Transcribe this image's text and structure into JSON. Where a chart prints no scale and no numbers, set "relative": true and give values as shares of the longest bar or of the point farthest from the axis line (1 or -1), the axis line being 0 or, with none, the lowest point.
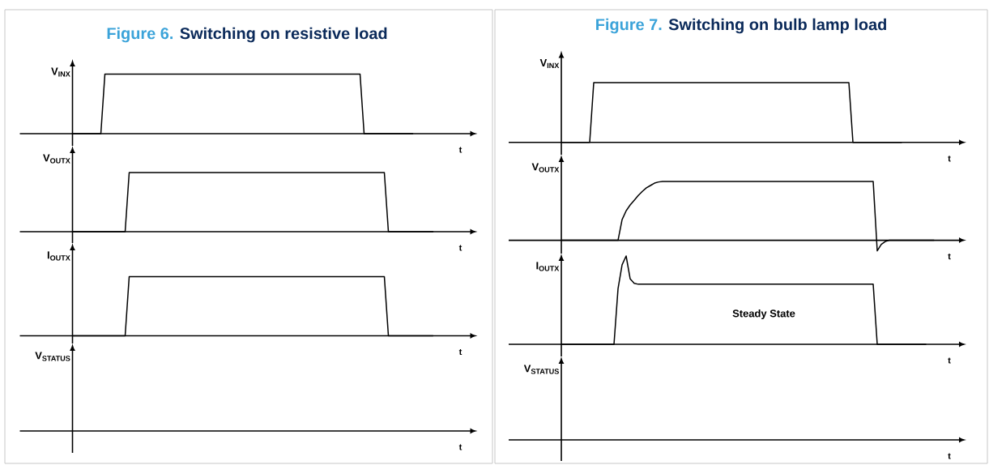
{
  "chart_data": [
    {
      "type": "line",
      "relative": true,
      "title": "Switching on resistive load",
      "annotations": [
        "Figure 6."
      ],
      "ylabel": "V$_{INX}$",
      "xlabel": "t",
      "color": "#000000",
      "categories": [
        null,
        null,
        null,
        null,
        null,
        null,
        null,
        null,
        null,
        null,
        null,
        null,
        null,
        null,
        null,
        null,
        null,
        null,
        null,
        null,
        null,
        null,
        null,
        null,
        null,
        null,
        null,
        null,
        null,
        null,
        null,
        null,
        null,
        null,
        null,
        null,
        null,
        null,
        null,
        null,
        null,
        null,
        null,
        null,
        null,
        null,
        null,
        null,
        null,
        null,
        null,
        null,
        null,
        null,
        null,
        null,
        null,
        null,
        null,
        null,
        null,
        null,
        null,
        null,
        null,
        null,
        null,
        null,
        null,
        null,
        null,
        null,
        null,
        null,
        null,
        null,
        null,
        null,
        null,
        null,
        null,
        null,
        null,
        null,
        null
      ],
      "values": [
        0,
        0,
        0,
        0,
        0,
        0,
        0,
        0,
        1,
        1,
        1,
        1,
        1,
        1,
        1,
        1,
        1,
        1,
        1,
        1,
        1,
        1,
        1,
        1,
        1,
        1,
        1,
        1,
        1,
        1,
        1,
        1,
        1,
        1,
        1,
        1,
        1,
        1,
        1,
        1,
        1,
        1,
        1,
        1,
        1,
        1,
        1,
        1,
        1,
        1,
        1,
        1,
        1,
        1,
        1,
        1,
        1,
        1,
        1,
        1,
        1,
        1,
        1,
        1,
        1,
        1,
        1,
        1,
        1,
        1,
        1,
        1,
        0,
        0,
        0,
        0,
        0,
        0,
        0,
        0,
        0,
        0,
        0,
        0,
        0
      ]
    },
    {
      "type": "line",
      "relative": true,
      "ylabel": "V$_{OUTX}$",
      "xlabel": "t",
      "color": "#000000",
      "categories": [
        null,
        null,
        null,
        null,
        null,
        null,
        null,
        null,
        null,
        null,
        null,
        null,
        null,
        null,
        null,
        null,
        null,
        null,
        null,
        null,
        null,
        null,
        null,
        null,
        null,
        null,
        null,
        null,
        null,
        null,
        null,
        null,
        null,
        null,
        null,
        null,
        null,
        null,
        null,
        null,
        null,
        null,
        null,
        null,
        null,
        null,
        null,
        null,
        null,
        null,
        null,
        null,
        null,
        null,
        null,
        null,
        null,
        null,
        null,
        null,
        null,
        null,
        null,
        null,
        null,
        null,
        null,
        null,
        null,
        null,
        null,
        null,
        null,
        null,
        null,
        null,
        null,
        null,
        null,
        null,
        null,
        null,
        null,
        null,
        null,
        null,
        null,
        null,
        null,
        null
      ],
      "values": [
        0,
        0,
        0,
        0,
        0,
        0,
        0,
        0,
        0,
        0,
        0,
        0,
        0,
        0,
        1,
        1,
        1,
        1,
        1,
        1,
        1,
        1,
        1,
        1,
        1,
        1,
        1,
        1,
        1,
        1,
        1,
        1,
        1,
        1,
        1,
        1,
        1,
        1,
        1,
        1,
        1,
        1,
        1,
        1,
        1,
        1,
        1,
        1,
        1,
        1,
        1,
        1,
        1,
        1,
        1,
        1,
        1,
        1,
        1,
        1,
        1,
        1,
        1,
        1,
        1,
        1,
        1,
        1,
        1,
        1,
        1,
        1,
        1,
        1,
        1,
        1,
        1,
        1,
        0,
        0,
        0,
        0,
        0,
        0,
        0,
        0,
        0,
        0,
        0,
        0
      ]
    },
    {
      "type": "line",
      "relative": true,
      "ylabel": "I$_{OUTX}$",
      "xlabel": "t",
      "color": "#000000",
      "categories": [
        null,
        null,
        null,
        null,
        null,
        null,
        null,
        null,
        null,
        null,
        null,
        null,
        null,
        null,
        null,
        null,
        null,
        null,
        null,
        null,
        null,
        null,
        null,
        null,
        null,
        null,
        null,
        null,
        null,
        null,
        null,
        null,
        null,
        null,
        null,
        null,
        null,
        null,
        null,
        null,
        null,
        null,
        null,
        null,
        null,
        null,
        null,
        null,
        null,
        null,
        null,
        null,
        null,
        null,
        null,
        null,
        null,
        null,
        null,
        null,
        null,
        null,
        null,
        null,
        null,
        null,
        null,
        null,
        null,
        null,
        null,
        null,
        null,
        null,
        null,
        null,
        null,
        null,
        null,
        null,
        null,
        null,
        null,
        null,
        null,
        null,
        null,
        null,
        null,
        null
      ],
      "values": [
        0,
        0,
        0,
        0,
        0,
        0,
        0,
        0,
        0,
        0,
        0,
        0,
        0,
        0,
        1,
        1,
        1,
        1,
        1,
        1,
        1,
        1,
        1,
        1,
        1,
        1,
        1,
        1,
        1,
        1,
        1,
        1,
        1,
        1,
        1,
        1,
        1,
        1,
        1,
        1,
        1,
        1,
        1,
        1,
        1,
        1,
        1,
        1,
        1,
        1,
        1,
        1,
        1,
        1,
        1,
        1,
        1,
        1,
        1,
        1,
        1,
        1,
        1,
        1,
        1,
        1,
        1,
        1,
        1,
        1,
        1,
        1,
        1,
        1,
        1,
        1,
        1,
        1,
        0,
        0,
        0,
        0,
        0,
        0,
        0,
        0,
        0,
        0,
        0,
        0
      ]
    },
    {
      "type": "other",
      "ylabel": "V$_{STATUS}$",
      "xlabel": "t"
    },
    {
      "type": "line",
      "relative": true,
      "title": "Switching on bulb lamp load",
      "annotations": [
        "Figure 7."
      ],
      "ylabel": "V$_{INX}$",
      "xlabel": "t",
      "color": "#000000",
      "categories": [
        null,
        null,
        null,
        null,
        null,
        null,
        null,
        null,
        null,
        null,
        null,
        null,
        null,
        null,
        null,
        null,
        null,
        null,
        null,
        null,
        null,
        null,
        null,
        null,
        null,
        null,
        null,
        null,
        null,
        null,
        null,
        null,
        null,
        null,
        null,
        null,
        null,
        null,
        null,
        null,
        null,
        null,
        null,
        null,
        null,
        null,
        null,
        null,
        null,
        null,
        null,
        null,
        null,
        null,
        null,
        null,
        null,
        null,
        null,
        null,
        null,
        null,
        null,
        null,
        null,
        null,
        null,
        null,
        null,
        null,
        null,
        null,
        null,
        null,
        null,
        null,
        null,
        null,
        null,
        null,
        null,
        null,
        null,
        null,
        null
      ],
      "values": [
        0,
        0,
        0,
        0,
        0,
        0,
        0,
        0,
        1,
        1,
        1,
        1,
        1,
        1,
        1,
        1,
        1,
        1,
        1,
        1,
        1,
        1,
        1,
        1,
        1,
        1,
        1,
        1,
        1,
        1,
        1,
        1,
        1,
        1,
        1,
        1,
        1,
        1,
        1,
        1,
        1,
        1,
        1,
        1,
        1,
        1,
        1,
        1,
        1,
        1,
        1,
        1,
        1,
        1,
        1,
        1,
        1,
        1,
        1,
        1,
        1,
        1,
        1,
        1,
        1,
        1,
        1,
        1,
        1,
        1,
        1,
        1,
        0,
        0,
        0,
        0,
        0,
        0,
        0,
        0,
        0,
        0,
        0,
        0,
        0
      ]
    },
    {
      "type": "line",
      "relative": true,
      "ylabel": "V$_{OUTX}$",
      "xlabel": "t",
      "color": "#000000",
      "categories": [
        null,
        null,
        null,
        null,
        null,
        null,
        null,
        null,
        null,
        null,
        null,
        null,
        null,
        null,
        null,
        null,
        null,
        null,
        null,
        null,
        null,
        null,
        null,
        null,
        null,
        null,
        null,
        null,
        null,
        null,
        null,
        null,
        null,
        null,
        null,
        null,
        null,
        null,
        null,
        null,
        null,
        null,
        null,
        null,
        null,
        null,
        null,
        null,
        null,
        null,
        null,
        null,
        null,
        null,
        null,
        null,
        null,
        null,
        null,
        null,
        null,
        null,
        null,
        null,
        null,
        null,
        null,
        null,
        null,
        null,
        null,
        null,
        null,
        null,
        null,
        null,
        null,
        null,
        null,
        null,
        null,
        null,
        null,
        null,
        null,
        null,
        null,
        null,
        null,
        null,
        null,
        null,
        null
      ],
      "values": [
        0,
        0,
        0,
        0,
        0,
        0,
        0,
        0,
        0,
        0,
        0,
        0,
        0,
        0,
        0,
        0.35,
        0.5,
        0.6,
        0.68,
        0.76,
        0.83,
        0.89,
        0.93,
        0.97,
        0.99,
        1,
        1,
        1,
        1,
        1,
        1,
        1,
        1,
        1,
        1,
        1,
        1,
        1,
        1,
        1,
        1,
        1,
        1,
        1,
        1,
        1,
        1,
        1,
        1,
        1,
        1,
        1,
        1,
        1,
        1,
        1,
        1,
        1,
        1,
        1,
        1,
        1,
        1,
        1,
        1,
        1,
        1,
        1,
        1,
        1,
        1,
        1,
        1,
        1,
        1,
        1,
        1,
        1,
        -0.18,
        -0.07,
        -0.02,
        0,
        0,
        0,
        0,
        0,
        0,
        0,
        0,
        0,
        0,
        0,
        0
      ]
    },
    {
      "type": "line",
      "relative": true,
      "ylabel": "I$_{OUTX}$",
      "xlabel": "t",
      "color": "#000000",
      "annotations": [
        "Steady State"
      ],
      "categories": [
        null,
        null,
        null,
        null,
        null,
        null,
        null,
        null,
        null,
        null,
        null,
        null,
        null,
        null,
        null,
        null,
        null,
        null,
        null,
        null,
        null,
        null,
        null,
        null,
        null,
        null,
        null,
        null,
        null,
        null,
        null,
        null,
        null,
        null,
        null,
        null,
        null,
        null,
        null,
        null,
        null,
        null,
        null,
        null,
        null,
        null,
        null,
        null,
        null,
        null,
        null,
        null,
        null,
        null,
        null,
        null,
        null,
        null,
        null,
        null,
        null,
        null,
        null,
        null,
        null,
        null,
        null,
        null,
        null,
        null,
        null,
        null,
        null,
        null,
        null,
        null,
        null,
        null,
        null,
        null,
        null,
        null,
        null,
        null,
        null,
        null,
        null,
        null,
        null,
        null,
        null
      ],
      "values": [
        0,
        0,
        0,
        0,
        0,
        0,
        0,
        0,
        0,
        0,
        0,
        0,
        0,
        0,
        0.63,
        0.9,
        1,
        0.74,
        0.69,
        0.68,
        0.68,
        0.68,
        0.68,
        0.68,
        0.68,
        0.68,
        0.68,
        0.68,
        0.68,
        0.68,
        0.68,
        0.68,
        0.68,
        0.68,
        0.68,
        0.68,
        0.68,
        0.68,
        0.68,
        0.68,
        0.68,
        0.68,
        0.68,
        0.68,
        0.68,
        0.68,
        0.68,
        0.68,
        0.68,
        0.68,
        0.68,
        0.68,
        0.68,
        0.68,
        0.68,
        0.68,
        0.68,
        0.68,
        0.68,
        0.68,
        0.68,
        0.68,
        0.68,
        0.68,
        0.68,
        0.68,
        0.68,
        0.68,
        0.68,
        0.68,
        0.68,
        0.68,
        0.68,
        0.68,
        0.68,
        0.68,
        0.68,
        0.68,
        0,
        0,
        0,
        0,
        0,
        0,
        0,
        0,
        0,
        0,
        0,
        0,
        0
      ]
    },
    {
      "type": "other",
      "ylabel": "V$_{STATUS}$",
      "xlabel": "t"
    }
  ]
}
